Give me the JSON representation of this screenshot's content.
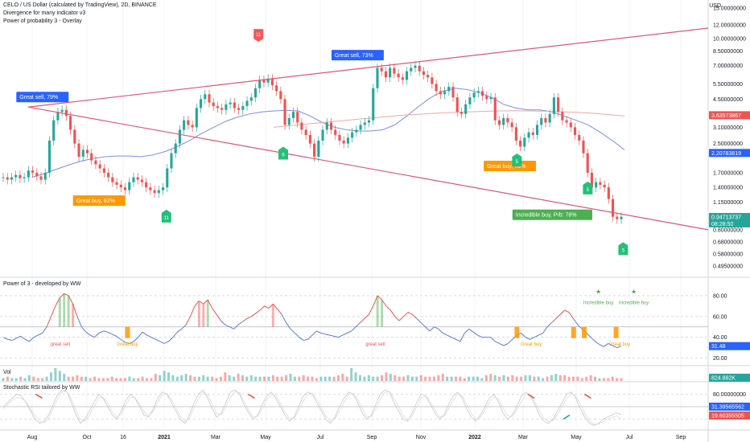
{
  "header": {
    "title": "CELO / US Dollar (calculated by TradingView), 2D, BINANCE",
    "indicator1": "Divergence for many indicator v3",
    "indicator2": "Power of probability 3 - Overlay",
    "currency": "USD"
  },
  "panes": {
    "power_label": "Power of 3 - developed by WW",
    "vol_label": "Vol",
    "stoch_label": "Stochastic RSI tailored by WW"
  },
  "colors": {
    "up": "#26a69a",
    "down": "#ef5350",
    "trend_line": "#e0566f",
    "ma_blue": "#7b8ee6",
    "ma_red": "#f0a7a7",
    "sell_box": "#2962ff",
    "buy_box": "#ff9800",
    "incredible_box": "#4caf50",
    "signal_green": "#23c07a",
    "signal_red": "#f25a5a",
    "axis_text": "#131722"
  },
  "chart_data": [
    {
      "type": "candlestick",
      "title": "CELO / US Dollar (calculated by TradingView), 2D, BINANCE",
      "y_scale": "log",
      "ylim": [
        0.45,
        15.0
      ],
      "x_ticks": [
        "Aug",
        "Oct",
        "16",
        "2021",
        "Mar",
        "May",
        "Jul",
        "Sep",
        "Nov",
        "2022",
        "Mar",
        "May",
        "Jul",
        "Sep"
      ],
      "y_ticks": [
        "15.00000000",
        "12.00000000",
        "10.00000000",
        "8.50000000",
        "7.00000000",
        "5.50000000",
        "4.50000000",
        "3.63573867",
        "3.10000000",
        "2.50000000",
        "2.20783819",
        "1.70000000",
        "1.40000000",
        "1.15000000",
        "0.94713737",
        "0.80000000",
        "0.68000000",
        "0.58000000",
        "0.49500000"
      ],
      "price_tags": [
        {
          "label": "3.63573867",
          "value": 3.63573867,
          "color": "#ef5350"
        },
        {
          "label": "2.20783819",
          "value": 2.20783819,
          "color": "#2962ff"
        },
        {
          "label": "0.94713737",
          "sublabel": "08:28:50",
          "value": 0.94713737,
          "color": "#26a69a"
        }
      ],
      "closes": [
        1.6,
        1.55,
        1.6,
        1.65,
        1.58,
        1.6,
        1.75,
        1.7,
        1.62,
        1.55,
        1.7,
        2.6,
        3.4,
        3.8,
        3.9,
        3.6,
        3.0,
        2.5,
        2.1,
        2.3,
        2.2,
        2.0,
        1.9,
        1.8,
        1.7,
        1.6,
        1.5,
        1.45,
        1.4,
        1.35,
        1.5,
        1.6,
        1.55,
        1.5,
        1.4,
        1.35,
        1.3,
        1.35,
        1.4,
        1.8,
        2.2,
        2.5,
        3.0,
        3.4,
        3.2,
        3.1,
        4.0,
        4.5,
        4.8,
        4.3,
        4.1,
        4.0,
        3.9,
        4.2,
        4.3,
        4.0,
        3.9,
        4.1,
        4.4,
        4.6,
        5.2,
        5.8,
        5.6,
        5.9,
        5.4,
        5.0,
        4.5,
        3.2,
        3.5,
        3.8,
        3.3,
        3.0,
        2.8,
        2.5,
        2.1,
        2.6,
        3.0,
        3.3,
        3.0,
        2.8,
        2.6,
        2.5,
        2.7,
        2.9,
        3.0,
        3.2,
        3.3,
        3.4,
        5.2,
        6.8,
        6.5,
        6.0,
        6.8,
        6.3,
        6.0,
        5.8,
        6.5,
        6.8,
        7.0,
        6.5,
        6.2,
        6.0,
        5.5,
        5.0,
        4.8,
        5.0,
        5.3,
        4.6,
        3.8,
        3.7,
        4.2,
        4.6,
        4.9,
        5.0,
        4.7,
        4.5,
        4.6,
        3.4,
        3.2,
        3.5,
        3.3,
        3.1,
        2.6,
        2.4,
        2.7,
        2.9,
        2.8,
        3.2,
        3.5,
        3.3,
        3.7,
        4.6,
        3.8,
        3.4,
        3.3,
        3.1,
        2.8,
        2.6,
        2.2,
        1.7,
        1.4,
        1.5,
        1.45,
        1.4,
        1.2,
        0.95,
        0.92,
        0.95
      ],
      "indicator_lines": [
        {
          "name": "MA",
          "color": "#7b8ee6",
          "values": [
            1.6,
            1.68,
            1.78,
            1.88,
            1.98,
            2.05,
            2.1,
            2.12,
            2.12,
            2.1,
            2.15,
            2.25,
            2.4,
            2.6,
            2.85,
            3.1,
            3.35,
            3.55,
            3.7,
            3.8,
            3.85,
            3.88,
            3.85,
            3.6,
            3.3,
            3.1,
            3.0,
            2.95,
            2.95,
            3.0,
            3.2,
            3.6,
            4.1,
            4.6,
            5.0,
            5.2,
            5.1,
            4.9,
            4.6,
            4.2,
            4.0,
            3.9,
            3.9,
            3.8,
            3.6,
            3.4,
            3.2,
            2.9,
            2.6,
            2.3
          ]
        },
        {
          "name": "MA",
          "color": "#f0a7a7",
          "values": [
            3.1,
            3.15,
            3.2,
            3.25,
            3.3,
            3.35,
            3.4,
            3.45,
            3.5,
            3.55,
            3.6,
            3.65,
            3.68,
            3.72,
            3.75,
            3.78,
            3.8,
            3.82,
            3.84,
            3.85,
            3.86,
            3.85,
            3.84,
            3.82,
            3.8,
            3.78,
            3.75,
            3.7,
            3.65,
            3.6
          ]
        }
      ],
      "trendlines": [
        {
          "from": [
            0.04,
            4.05
          ],
          "to": [
            1.0,
            11.5
          ]
        },
        {
          "from": [
            0.04,
            4.05
          ],
          "to": [
            1.0,
            0.8
          ]
        }
      ],
      "annotations": [
        {
          "text": "Great sell, 79%",
          "kind": "sell",
          "x": 0.06,
          "value": 4.6
        },
        {
          "text": "Great sell, 73%",
          "kind": "sell",
          "x": 0.505,
          "value": 8.0
        },
        {
          "text": "Great buy,  62%",
          "kind": "buy",
          "x": 0.14,
          "value": 1.17
        },
        {
          "text": "Great buy,  78%",
          "kind": "buy",
          "x": 0.72,
          "value": 1.85
        },
        {
          "text": "Incredible buy, Prb: 78%",
          "kind": "incredible",
          "x": 0.78,
          "value": 0.97
        }
      ],
      "signals": [
        {
          "label": "11",
          "direction": "up",
          "x": 0.235,
          "value": 1.0
        },
        {
          "label": "11",
          "direction": "down",
          "x": 0.365,
          "value": 10.0
        },
        {
          "label": "6",
          "direction": "up",
          "x": 0.4,
          "value": 2.3
        },
        {
          "label": "5",
          "direction": "up",
          "x": 0.73,
          "value": 2.1
        },
        {
          "label": "5",
          "direction": "up",
          "x": 0.83,
          "value": 1.45
        },
        {
          "label": "5",
          "direction": "up",
          "x": 0.88,
          "value": 0.65
        }
      ]
    },
    {
      "type": "line",
      "title": "Power of 3 - developed by WW",
      "ylim": [
        15,
        90
      ],
      "y_ticks": [
        "80.00",
        "60.00",
        "40.00",
        "20.00"
      ],
      "last_value_tag": "31.48",
      "series": [
        {
          "color": "#5b7bd5",
          "values": [
            40,
            38,
            37,
            39,
            41,
            38,
            36,
            40,
            42,
            44,
            50,
            60,
            70,
            78,
            82,
            80,
            72,
            60,
            50,
            45,
            42,
            40,
            44,
            46,
            45,
            43,
            41,
            38,
            35,
            34,
            36,
            40,
            45,
            42,
            40,
            38,
            36,
            34,
            36,
            40,
            45,
            48,
            52,
            60,
            70,
            75,
            72,
            76,
            68,
            62,
            56,
            52,
            50,
            48,
            52,
            55,
            58,
            60,
            63,
            66,
            70,
            68,
            72,
            67,
            62,
            54,
            48,
            44,
            40,
            37,
            38,
            42,
            46,
            44,
            43,
            42,
            41,
            40,
            42,
            44,
            46,
            50,
            54,
            58,
            62,
            70,
            80,
            76,
            70,
            66,
            60,
            56,
            60,
            64,
            62,
            58,
            54,
            50,
            46,
            50,
            48,
            44,
            42,
            40,
            38,
            36,
            44,
            48,
            45,
            42,
            40,
            40,
            40,
            36,
            34,
            32,
            34,
            38,
            42,
            44,
            40,
            38,
            40,
            42,
            44,
            50,
            54,
            58,
            62,
            66,
            64,
            58,
            52,
            48,
            44,
            40,
            36,
            33,
            31,
            34,
            32,
            30,
            31.5
          ]
        }
      ],
      "annotations": [
        {
          "text": "great sell",
          "x": 0.085
        },
        {
          "text": "Great buy",
          "x": 0.18
        },
        {
          "text": "great sell",
          "x": 0.53
        },
        {
          "text": "Great buy",
          "x": 0.75
        },
        {
          "text": "Incredible buy",
          "x": 0.845
        },
        {
          "text": "Incredible buy",
          "x": 0.895
        },
        {
          "text": "Great buy",
          "x": 0.875
        }
      ]
    },
    {
      "type": "bar",
      "title": "Vol",
      "last_value_tag": "824.882K",
      "values": [
        2,
        3,
        2,
        2,
        3,
        2,
        4,
        3,
        2,
        2,
        3,
        6,
        9,
        7,
        5,
        3,
        3,
        4,
        3,
        3,
        2,
        3,
        2,
        2,
        2,
        3,
        2,
        2,
        2,
        3,
        2,
        2,
        3,
        2,
        2,
        5,
        4,
        7,
        6,
        4,
        3,
        4,
        5,
        4,
        3,
        3,
        4,
        3,
        3,
        2,
        3,
        6,
        4,
        3,
        5,
        4,
        3,
        4,
        3,
        3,
        3,
        3,
        4,
        3,
        3,
        4,
        5,
        3,
        3,
        4,
        3,
        3,
        2,
        3,
        3,
        3,
        3,
        4,
        5,
        3,
        9,
        6,
        4,
        3,
        4,
        3,
        3,
        4,
        6,
        5,
        4,
        3,
        3,
        4,
        3,
        3,
        4,
        3,
        3,
        3,
        4,
        5,
        3,
        3,
        3,
        3,
        2,
        3,
        3,
        3,
        2,
        4,
        5,
        4,
        3,
        4,
        3,
        4,
        3,
        3,
        4,
        4,
        3,
        3,
        2,
        3,
        4,
        5,
        4,
        4,
        3,
        3,
        3,
        2,
        3,
        4,
        3,
        2,
        2,
        2,
        3,
        2,
        2
      ]
    },
    {
      "type": "line",
      "title": "Stochastic RSI tailored by WW",
      "ylim": [
        0,
        100
      ],
      "y_ticks": [
        "80.00000000"
      ],
      "last_value_tags": [
        "31.39565562",
        "19.60355505"
      ],
      "series": [
        {
          "color": "#c8c8c8",
          "values": [
            50,
            60,
            70,
            80,
            75,
            60,
            40,
            20,
            10,
            15,
            30,
            55,
            80,
            90,
            85,
            60,
            30,
            10,
            20,
            40,
            60,
            80,
            70,
            50,
            30,
            20,
            40,
            65,
            80,
            70,
            50,
            30,
            25,
            45,
            70,
            85,
            80,
            60,
            40,
            20,
            10,
            30,
            60,
            80,
            90,
            70,
            45,
            25,
            35,
            60,
            85,
            90,
            80,
            55,
            35,
            20,
            30,
            55,
            75,
            85,
            70,
            50,
            30,
            15,
            25,
            50,
            75,
            85,
            80,
            60,
            40,
            20,
            10,
            25,
            50,
            70,
            85,
            80,
            60,
            35,
            20,
            30,
            55,
            80,
            90,
            85,
            60,
            40,
            20,
            15,
            35,
            60,
            80,
            75,
            55,
            35,
            20,
            30,
            55,
            75,
            85,
            70,
            45,
            25,
            15,
            30,
            50,
            70,
            80,
            60,
            35,
            20,
            30,
            50,
            75,
            85,
            75,
            55,
            30,
            15,
            10,
            20,
            40,
            60,
            80,
            85,
            70,
            45,
            25,
            10,
            5,
            10,
            20,
            25,
            30,
            35,
            31
          ]
        },
        {
          "color": "#ef5350",
          "values": [
            45,
            55,
            65,
            72,
            70,
            62,
            45,
            28,
            15,
            12,
            22,
            45,
            70,
            85,
            86,
            68,
            40,
            18,
            15,
            30,
            50,
            70,
            72,
            58,
            38,
            24,
            32,
            55,
            72,
            72,
            56,
            38,
            28,
            38,
            60,
            78,
            82,
            68,
            48,
            28,
            15,
            22,
            48,
            70,
            85,
            78,
            56,
            34,
            30,
            50,
            72,
            86,
            84,
            64,
            42,
            26,
            26,
            45,
            66,
            80,
            76,
            58,
            38,
            22,
            22,
            40,
            62,
            80,
            82,
            68,
            48,
            28,
            15,
            20,
            40,
            60,
            78,
            82,
            68,
            46,
            26,
            26,
            45,
            68,
            84,
            86,
            70,
            50,
            30,
            18,
            28,
            50,
            70,
            76,
            62,
            42,
            26,
            26,
            45,
            65,
            80,
            76,
            56,
            34,
            20,
            24,
            42,
            60,
            74,
            68,
            46,
            28,
            26,
            42,
            62,
            80,
            78,
            62,
            40,
            22,
            14,
            16,
            32,
            50,
            70,
            82,
            76,
            56,
            34,
            16,
            8,
            8,
            14,
            20,
            24,
            28,
            19.6
          ]
        }
      ],
      "markers": [
        {
          "label": "",
          "x": 0.055,
          "color": "#ef5350"
        },
        {
          "label": "",
          "x": 0.355,
          "color": "#ef5350"
        },
        {
          "label": "",
          "x": 0.75,
          "color": "#ef5350"
        },
        {
          "label": "",
          "x": 0.8,
          "color": "#26a69a"
        },
        {
          "label": "",
          "x": 0.83,
          "color": "#ef5350"
        }
      ]
    }
  ]
}
